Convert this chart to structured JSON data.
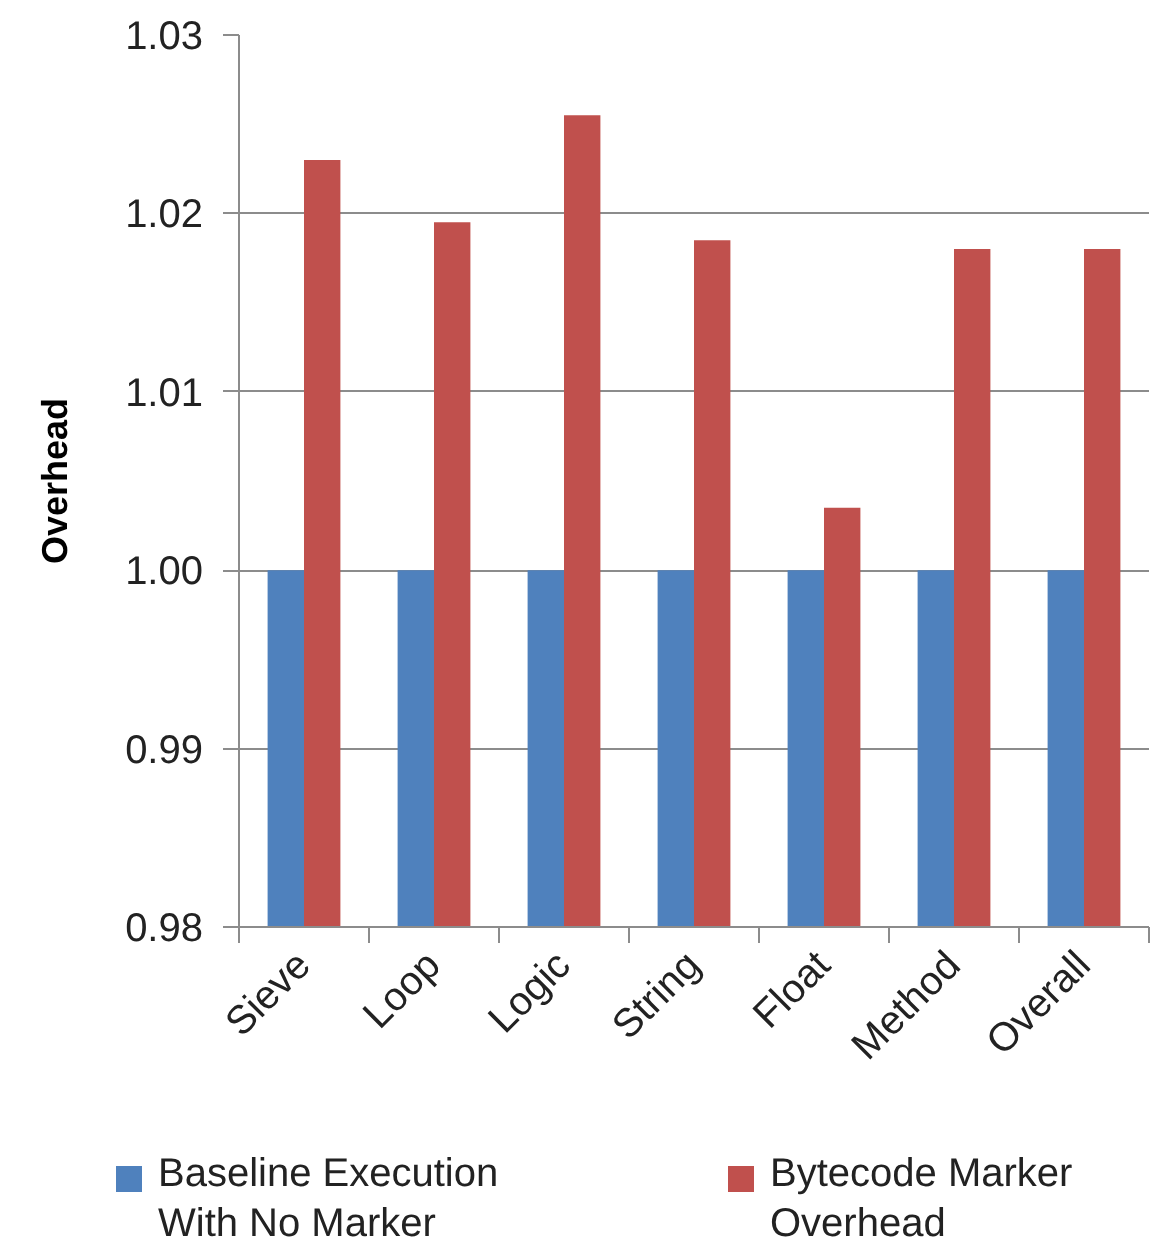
{
  "chart_data": {
    "type": "bar",
    "ylabel": "Overhead",
    "categories": [
      "Sieve",
      "Loop",
      "Logic",
      "String",
      "Float",
      "Method",
      "Overall"
    ],
    "series": [
      {
        "name": "Baseline Execution With No Marker",
        "color": "#4f81bd",
        "values": [
          1.0,
          1.0,
          1.0,
          1.0,
          1.0,
          1.0,
          1.0
        ]
      },
      {
        "name": "Bytecode Marker Overhead",
        "color": "#c0504d",
        "values": [
          1.023,
          1.0195,
          1.0255,
          1.0185,
          1.0035,
          1.018,
          1.018
        ]
      }
    ],
    "ylim": [
      0.98,
      1.03
    ],
    "yticks": [
      0.98,
      0.99,
      {
        "value": 1.0,
        "label": "1.00"
      },
      1.01,
      1.02,
      1.03
    ],
    "grid": "y",
    "legend": "bottom"
  }
}
